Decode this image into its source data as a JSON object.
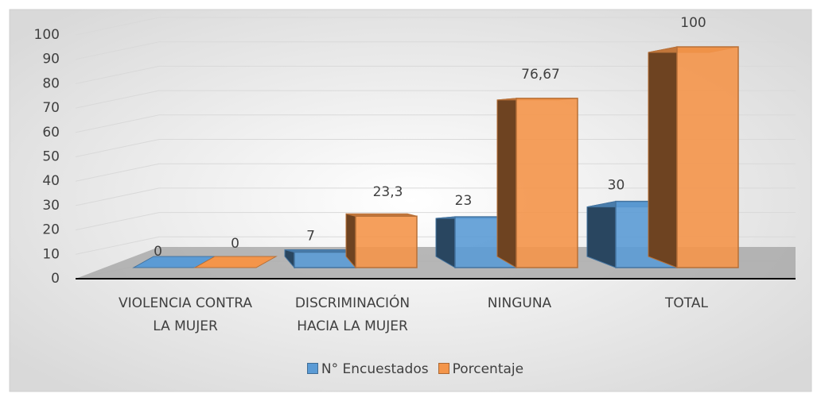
{
  "chart_data": {
    "type": "bar3d",
    "categories": [
      "VIOLENCIA CONTRA LA MUJER",
      "DISCRIMINACIÓN HACIA LA MUJER",
      "NINGUNA",
      "TOTAL"
    ],
    "series": [
      {
        "name": "N° Encuestados",
        "color": "#5b9bd5",
        "values": [
          0,
          7,
          23,
          30
        ]
      },
      {
        "name": "Porcentaje",
        "color": "#f4954a",
        "values": [
          0,
          23.3,
          76.67,
          100
        ],
        "value_labels": [
          "0",
          "23,3",
          "76,67",
          "100"
        ]
      }
    ],
    "ylim": [
      0,
      100
    ],
    "yticks": [
      0,
      10,
      20,
      30,
      40,
      50,
      60,
      70,
      80,
      90,
      100
    ],
    "grid": true,
    "legend": "bottom"
  }
}
